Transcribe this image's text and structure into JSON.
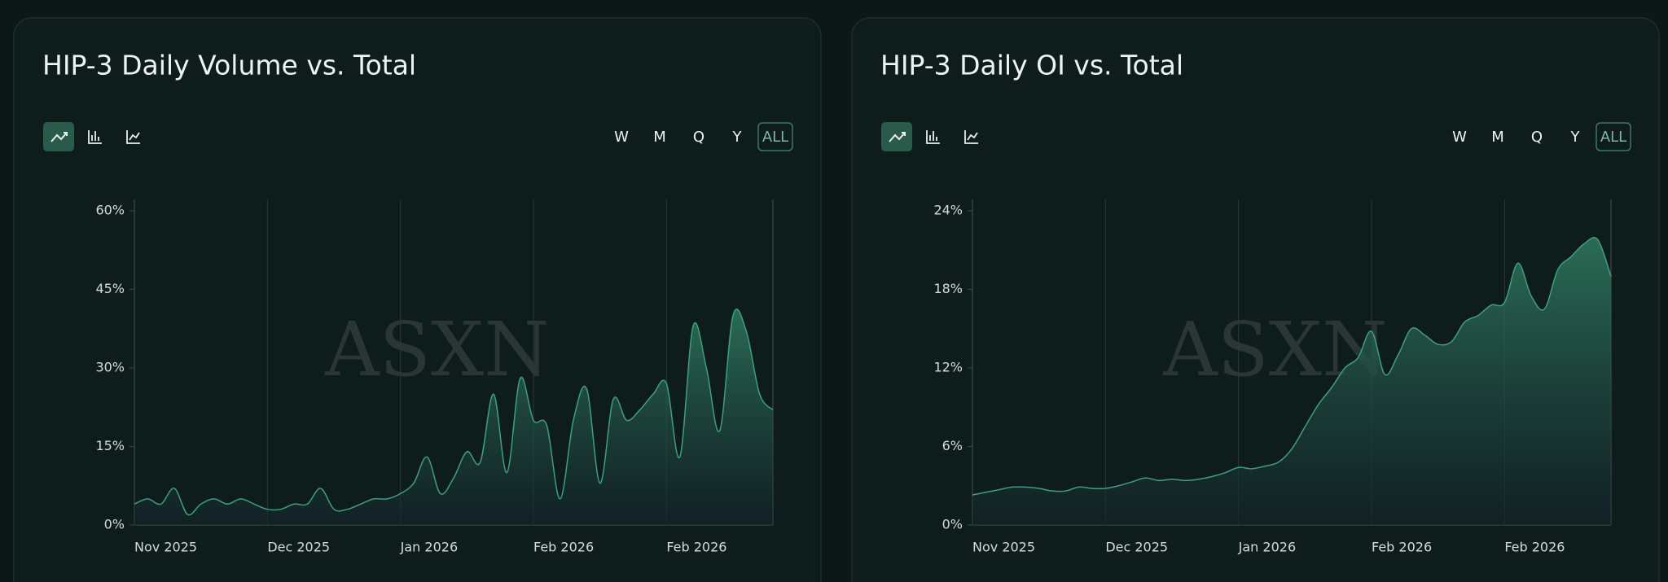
{
  "chart_data": [
    {
      "type": "area",
      "title": "HIP-3 Daily Volume vs. Total",
      "watermark": "ASXN",
      "range_buttons": [
        "W",
        "M",
        "Q",
        "Y",
        "ALL"
      ],
      "categories": [
        "Nov 2025",
        null,
        null,
        null,
        null,
        null,
        null,
        null,
        null,
        null,
        "Dec 2025",
        null,
        null,
        null,
        null,
        null,
        null,
        null,
        null,
        null,
        "Jan 2026",
        null,
        null,
        null,
        null,
        null,
        null,
        null,
        null,
        null,
        "Feb 2026",
        null,
        null,
        null,
        null,
        null,
        null,
        null,
        null,
        null,
        "Feb 2026",
        null,
        null,
        null,
        null,
        null,
        null,
        null,
        null
      ],
      "series": [
        {
          "name": "HIP-3 Daily Volume vs. Total",
          "color": "#3f9f7d",
          "values": [
            4,
            5,
            4,
            7,
            2,
            4,
            5,
            4,
            5,
            4,
            3,
            3,
            4,
            4,
            7,
            3,
            3,
            4,
            5,
            5,
            6,
            8,
            13,
            6,
            9,
            14,
            12,
            25,
            10,
            28,
            20,
            19,
            5,
            20,
            26,
            8,
            24,
            20,
            22,
            25,
            27,
            13,
            38,
            30,
            18,
            40,
            37,
            25,
            22
          ]
        }
      ],
      "ylim": [
        0,
        60
      ],
      "yticks": [
        {
          "value": 0,
          "label": "0%"
        },
        {
          "value": 15,
          "label": "15%"
        },
        {
          "value": 30,
          "label": "30%"
        },
        {
          "value": 45,
          "label": "45%"
        },
        {
          "value": 60,
          "label": "60%"
        }
      ],
      "grid": true
    },
    {
      "type": "area",
      "title": "HIP-3 Daily OI vs. Total",
      "watermark": "ASXN",
      "range_buttons": [
        "W",
        "M",
        "Q",
        "Y",
        "ALL"
      ],
      "categories": [
        "Nov 2025",
        null,
        null,
        null,
        null,
        null,
        null,
        null,
        null,
        null,
        "Dec 2025",
        null,
        null,
        null,
        null,
        null,
        null,
        null,
        null,
        null,
        "Jan 2026",
        null,
        null,
        null,
        null,
        null,
        null,
        null,
        null,
        null,
        "Feb 2026",
        null,
        null,
        null,
        null,
        null,
        null,
        null,
        null,
        null,
        "Feb 2026",
        null,
        null,
        null,
        null,
        null,
        null,
        null,
        null
      ],
      "series": [
        {
          "name": "HIP-3 Daily OI vs. Total",
          "color": "#3f9f7d",
          "values": [
            2.3,
            2.5,
            2.7,
            2.9,
            2.9,
            2.8,
            2.6,
            2.6,
            2.9,
            2.8,
            2.8,
            3.0,
            3.3,
            3.6,
            3.4,
            3.5,
            3.4,
            3.5,
            3.7,
            4.0,
            4.4,
            4.3,
            4.5,
            4.8,
            5.8,
            7.5,
            9.2,
            10.5,
            12.0,
            12.8,
            14.8,
            11.5,
            13.0,
            15.0,
            14.5,
            13.8,
            14.0,
            15.5,
            16.0,
            16.8,
            17.0,
            20.0,
            17.5,
            16.5,
            19.5,
            20.5,
            21.5,
            21.8,
            19.0
          ]
        }
      ],
      "ylim": [
        0,
        24
      ],
      "yticks": [
        {
          "value": 0,
          "label": "0%"
        },
        {
          "value": 6,
          "label": "6%"
        },
        {
          "value": 12,
          "label": "12%"
        },
        {
          "value": 18,
          "label": "18%"
        },
        {
          "value": 24,
          "label": "24%"
        }
      ],
      "grid": true
    }
  ]
}
